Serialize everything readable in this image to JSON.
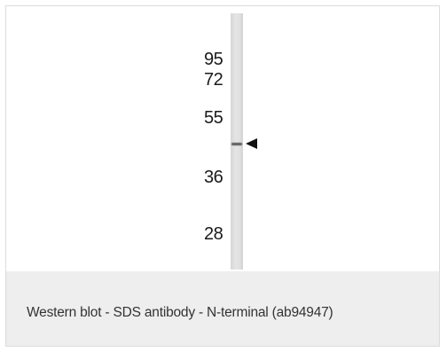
{
  "figure": {
    "markers": [
      "95",
      "72",
      "55",
      "36",
      "28"
    ],
    "caption": "Western blot - SDS antibody - N-terminal (ab94947)"
  }
}
